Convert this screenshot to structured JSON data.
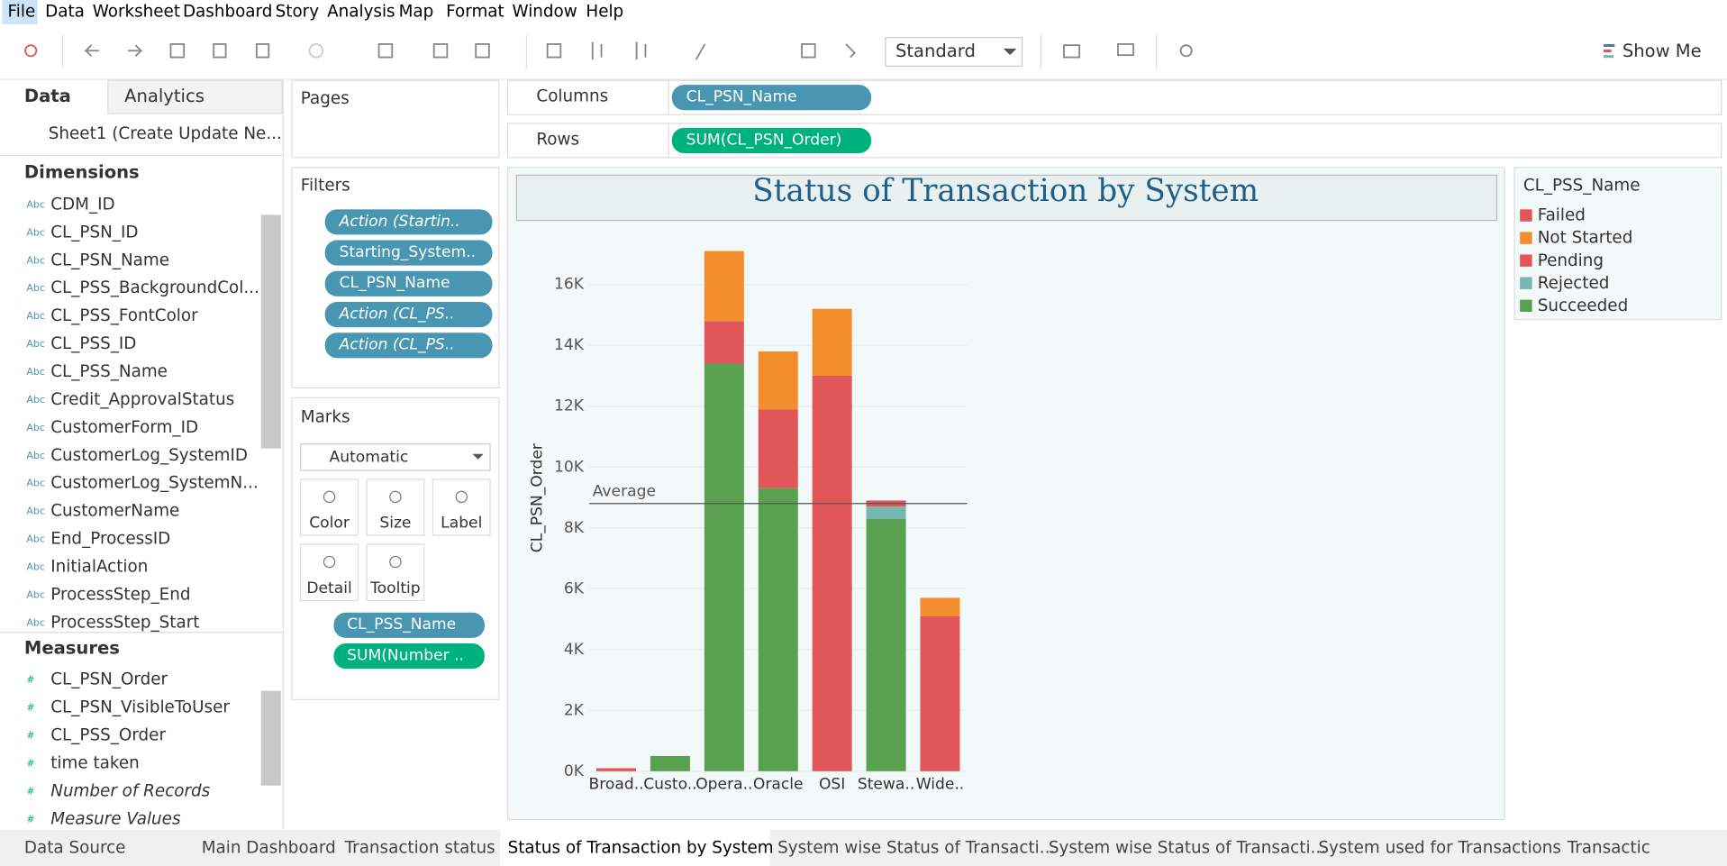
{
  "menu": [
    "File",
    "Data",
    "Worksheet",
    "Dashboard",
    "Story",
    "Analysis",
    "Map",
    "Format",
    "Window",
    "Help"
  ],
  "toolbar": {
    "fit": "Standard",
    "show_me": "Show Me"
  },
  "data_pane": {
    "tabs": [
      "Data",
      "Analytics"
    ],
    "source": "Sheet1 (Create Update Ne...",
    "dimensions_title": "Dimensions",
    "dimensions": [
      "CDM_ID",
      "CL_PSN_ID",
      "CL_PSN_Name",
      "CL_PSS_BackgroundCol...",
      "CL_PSS_FontColor",
      "CL_PSS_ID",
      "CL_PSS_Name",
      "Credit_ApprovalStatus",
      "CustomerForm_ID",
      "CustomerLog_SystemID",
      "CustomerLog_SystemN...",
      "CustomerName",
      "End_ProcessID",
      "InitialAction",
      "ProcessStep_End",
      "ProcessStep_Start"
    ],
    "measures_title": "Measures",
    "measures": [
      "CL_PSN_Order",
      "CL_PSN_VisibleToUser",
      "CL_PSS_Order",
      "time taken",
      "Number of Records",
      "Measure Values"
    ]
  },
  "pages_title": "Pages",
  "filters": {
    "title": "Filters",
    "items": [
      "Action (Startin..",
      "Starting_System..",
      "CL_PSN_Name",
      "Action (CL_PS..",
      "Action (CL_PS.."
    ]
  },
  "marks": {
    "title": "Marks",
    "type": "Automatic",
    "buttons": [
      "Color",
      "Size",
      "Label",
      "Detail",
      "Tooltip"
    ],
    "pills": [
      "CL_PSS_Name",
      "SUM(Number .."
    ]
  },
  "columns": {
    "label": "Columns",
    "pill": "CL_PSN_Name"
  },
  "rows": {
    "label": "Rows",
    "pill": "SUM(CL_PSN_Order)"
  },
  "chart_data": {
    "type": "stacked_bar",
    "title": "Status of Transaction by System",
    "y_label": "CL_PSN_Order",
    "legend_title": "CL_PSS_Name",
    "categories": [
      "Broad..",
      "Custo..",
      "Opera..",
      "Oracle",
      "OSI",
      "Stewa..",
      "Wide.."
    ],
    "series": [
      {
        "name": "Failed",
        "color": "#e15759",
        "values": [
          100,
          0,
          1400,
          2600,
          13000,
          200,
          5100
        ]
      },
      {
        "name": "Not Started",
        "color": "#f28e2b",
        "values": [
          0,
          0,
          2300,
          1900,
          2200,
          0,
          600
        ]
      },
      {
        "name": "Pending",
        "color": "#e15759",
        "values": [
          0,
          0,
          0,
          0,
          0,
          0,
          0
        ]
      },
      {
        "name": "Rejected",
        "color": "#76b7b2",
        "values": [
          0,
          0,
          0,
          0,
          0,
          400,
          0
        ]
      },
      {
        "name": "Succeeded",
        "color": "#59a14f",
        "values": [
          0,
          500,
          13400,
          9300,
          0,
          8300,
          0
        ]
      }
    ],
    "ylim": [
      0,
      18000
    ],
    "yticks": [
      {
        "value": 0,
        "label": "0K"
      },
      {
        "value": 2000,
        "label": "2K"
      },
      {
        "value": 4000,
        "label": "4K"
      },
      {
        "value": 6000,
        "label": "6K"
      },
      {
        "value": 8000,
        "label": "8K"
      },
      {
        "value": 10000,
        "label": "10K"
      },
      {
        "value": 12000,
        "label": "12K"
      },
      {
        "value": 14000,
        "label": "14K"
      },
      {
        "value": 16000,
        "label": "16K"
      }
    ],
    "reference_line": {
      "label": "Average",
      "value": 8800
    }
  },
  "tabs": [
    "Data Source",
    "Main Dashboard",
    "Transaction status",
    "Status of Transaction by System",
    "System wise Status of Transacti...",
    "System wise Status of Transacti...",
    "System used for Transactions",
    "Transactic"
  ]
}
